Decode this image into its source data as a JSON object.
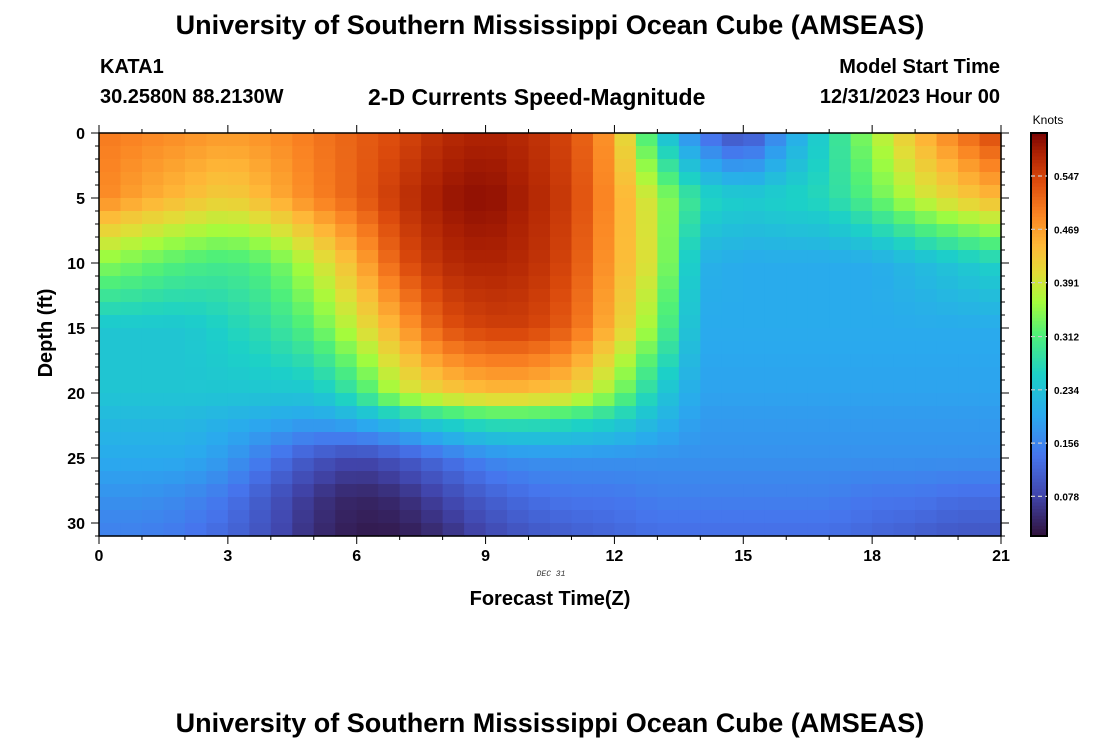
{
  "header": {
    "title": "University of Southern Mississippi Ocean Cube (AMSEAS)",
    "station": "KATA1",
    "coordinates": "30.2580N  88.2130W",
    "subtitle": "2-D Currents Speed-Magnitude",
    "model_start_label": "Model Start Time",
    "model_start_value": "12/31/2023 Hour 00"
  },
  "footer": {
    "title": "University of Southern Mississippi Ocean Cube (AMSEAS)"
  },
  "chart_data": {
    "type": "heatmap",
    "title": "2-D Currents Speed-Magnitude",
    "xlabel": "Forecast Time(Z)",
    "ylabel": "Depth (ft)",
    "x_ticks": [
      "0",
      "3",
      "6",
      "9",
      "12",
      "15",
      "18",
      "21"
    ],
    "x_tick_values": [
      0,
      3,
      6,
      9,
      12,
      15,
      18,
      21
    ],
    "y_ticks": [
      "0",
      "5",
      "10",
      "15",
      "20",
      "25",
      "30"
    ],
    "y_tick_values": [
      0,
      5,
      10,
      15,
      20,
      25,
      30
    ],
    "xlim": [
      0,
      21
    ],
    "ylim": [
      0,
      31
    ],
    "date_annotation": "DEC 31",
    "colorbar": {
      "label": "Knots",
      "range": [
        0.02,
        0.61
      ],
      "ticks": [
        "0.547",
        "0.469",
        "0.391",
        "0.312",
        "0.234",
        "0.156",
        "0.078"
      ],
      "tick_values": [
        0.547,
        0.469,
        0.391,
        0.312,
        0.234,
        0.156,
        0.078
      ]
    },
    "time_hours": [
      0,
      1,
      2,
      3,
      4,
      5,
      6,
      7,
      8,
      9,
      10,
      11,
      12,
      13,
      14,
      15,
      16,
      17,
      18,
      19,
      20,
      21
    ],
    "depth_ft": [
      0,
      5,
      10,
      15,
      20,
      22,
      25,
      28,
      31
    ],
    "speed_knots": [
      [
        0.5,
        0.49,
        0.48,
        0.47,
        0.48,
        0.5,
        0.52,
        0.54,
        0.57,
        0.58,
        0.57,
        0.54,
        0.46,
        0.26,
        0.14,
        0.08,
        0.18,
        0.27,
        0.36,
        0.44,
        0.5,
        0.55
      ],
      [
        0.49,
        0.46,
        0.44,
        0.42,
        0.45,
        0.49,
        0.52,
        0.56,
        0.59,
        0.6,
        0.58,
        0.55,
        0.47,
        0.37,
        0.27,
        0.25,
        0.26,
        0.27,
        0.32,
        0.38,
        0.42,
        0.45
      ],
      [
        0.35,
        0.33,
        0.31,
        0.3,
        0.32,
        0.38,
        0.45,
        0.53,
        0.57,
        0.58,
        0.57,
        0.54,
        0.46,
        0.38,
        0.21,
        0.2,
        0.2,
        0.2,
        0.2,
        0.22,
        0.24,
        0.26
      ],
      [
        0.24,
        0.24,
        0.24,
        0.26,
        0.28,
        0.32,
        0.39,
        0.46,
        0.53,
        0.55,
        0.55,
        0.52,
        0.44,
        0.34,
        0.2,
        0.2,
        0.2,
        0.2,
        0.2,
        0.2,
        0.2,
        0.2
      ],
      [
        0.24,
        0.24,
        0.24,
        0.24,
        0.24,
        0.24,
        0.29,
        0.38,
        0.42,
        0.44,
        0.44,
        0.42,
        0.35,
        0.25,
        0.19,
        0.19,
        0.19,
        0.19,
        0.19,
        0.19,
        0.19,
        0.19
      ],
      [
        0.22,
        0.22,
        0.22,
        0.21,
        0.2,
        0.19,
        0.21,
        0.24,
        0.27,
        0.29,
        0.29,
        0.28,
        0.26,
        0.22,
        0.18,
        0.18,
        0.18,
        0.18,
        0.18,
        0.18,
        0.18,
        0.18
      ],
      [
        0.2,
        0.2,
        0.2,
        0.18,
        0.14,
        0.1,
        0.08,
        0.1,
        0.13,
        0.16,
        0.17,
        0.17,
        0.17,
        0.17,
        0.17,
        0.17,
        0.17,
        0.17,
        0.17,
        0.17,
        0.17,
        0.17
      ],
      [
        0.17,
        0.17,
        0.16,
        0.14,
        0.1,
        0.06,
        0.04,
        0.05,
        0.08,
        0.11,
        0.13,
        0.14,
        0.14,
        0.15,
        0.15,
        0.15,
        0.15,
        0.15,
        0.14,
        0.14,
        0.13,
        0.13
      ],
      [
        0.15,
        0.15,
        0.14,
        0.12,
        0.09,
        0.05,
        0.03,
        0.03,
        0.05,
        0.08,
        0.1,
        0.11,
        0.12,
        0.13,
        0.13,
        0.13,
        0.13,
        0.13,
        0.12,
        0.11,
        0.1,
        0.1
      ]
    ]
  }
}
